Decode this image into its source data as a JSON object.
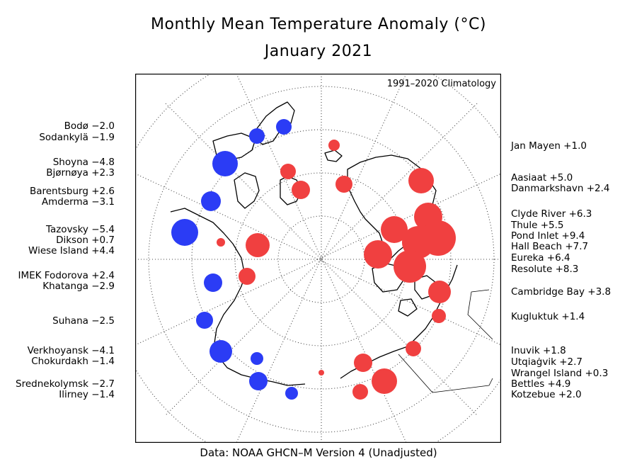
{
  "title": "Monthly Mean Temperature Anomaly (°C)",
  "subtitle": "January 2021",
  "climatology": "1991–2020 Climatology",
  "footer": "Data: NOAA GHCN–M Version 4 (Unadjusted)",
  "colors": {
    "warm": "#f04040",
    "cold": "#2b3cf5"
  },
  "stations": [
    {
      "name": "Bodø",
      "value": "−2.0",
      "anomaly": -2.0,
      "side": "left"
    },
    {
      "name": "Sodankylä",
      "value": "−1.9",
      "anomaly": -1.9,
      "side": "left"
    },
    {
      "name": "Shoyna",
      "value": "−4.8",
      "anomaly": -4.8,
      "side": "left"
    },
    {
      "name": "Bjørnøya",
      "value": "+2.3",
      "anomaly": 2.3,
      "side": "left"
    },
    {
      "name": "Barentsburg",
      "value": "+2.6",
      "anomaly": 2.6,
      "side": "left"
    },
    {
      "name": "Amderma",
      "value": "−3.1",
      "anomaly": -3.1,
      "side": "left"
    },
    {
      "name": "Tazovsky",
      "value": "−5.4",
      "anomaly": -5.4,
      "side": "left"
    },
    {
      "name": "Dikson",
      "value": "+0.7",
      "anomaly": 0.7,
      "side": "left"
    },
    {
      "name": "Wiese Island",
      "value": "+4.4",
      "anomaly": 4.4,
      "side": "left"
    },
    {
      "name": "IMEK Fodorova",
      "value": "+2.4",
      "anomaly": 2.4,
      "side": "left"
    },
    {
      "name": "Khatanga",
      "value": "−2.9",
      "anomaly": -2.9,
      "side": "left"
    },
    {
      "name": "Suhana",
      "value": "−2.5",
      "anomaly": -2.5,
      "side": "left"
    },
    {
      "name": "Verkhoyansk",
      "value": "−4.1",
      "anomaly": -4.1,
      "side": "left"
    },
    {
      "name": "Chokurdakh",
      "value": "−1.4",
      "anomaly": -1.4,
      "side": "left"
    },
    {
      "name": "Srednekolymsk",
      "value": "−2.7",
      "anomaly": -2.7,
      "side": "left"
    },
    {
      "name": "Ilirney",
      "value": "−1.4",
      "anomaly": -1.4,
      "side": "left"
    },
    {
      "name": "Jan Mayen",
      "value": "+1.0",
      "anomaly": 1.0,
      "side": "right"
    },
    {
      "name": "Aasiaat",
      "value": "+5.0",
      "anomaly": 5.0,
      "side": "right"
    },
    {
      "name": "Danmarkshavn",
      "value": "+2.4",
      "anomaly": 2.4,
      "side": "right"
    },
    {
      "name": "Clyde River",
      "value": "+6.3",
      "anomaly": 6.3,
      "side": "right"
    },
    {
      "name": "Thule",
      "value": "+5.5",
      "anomaly": 5.5,
      "side": "right"
    },
    {
      "name": "Pond Inlet",
      "value": "+9.4",
      "anomaly": 9.4,
      "side": "right"
    },
    {
      "name": "Hall Beach",
      "value": "+7.7",
      "anomaly": 7.7,
      "side": "right"
    },
    {
      "name": "Eureka",
      "value": "+6.4",
      "anomaly": 6.4,
      "side": "right"
    },
    {
      "name": "Resolute",
      "value": "+8.3",
      "anomaly": 8.3,
      "side": "right"
    },
    {
      "name": "Cambridge Bay",
      "value": "+3.8",
      "anomaly": 3.8,
      "side": "right"
    },
    {
      "name": "Kugluktuk",
      "value": "+1.4",
      "anomaly": 1.4,
      "side": "right"
    },
    {
      "name": "Inuvik",
      "value": "+1.8",
      "anomaly": 1.8,
      "side": "right"
    },
    {
      "name": "Utqiaġvik",
      "value": "+2.7",
      "anomaly": 2.7,
      "side": "right"
    },
    {
      "name": "Wrangel Island",
      "value": "+0.3",
      "anomaly": 0.3,
      "side": "right"
    },
    {
      "name": "Bettles",
      "value": "+4.9",
      "anomaly": 4.9,
      "side": "right"
    },
    {
      "name": "Kotzebue",
      "value": "+2.0",
      "anomaly": 2.0,
      "side": "right"
    }
  ]
}
